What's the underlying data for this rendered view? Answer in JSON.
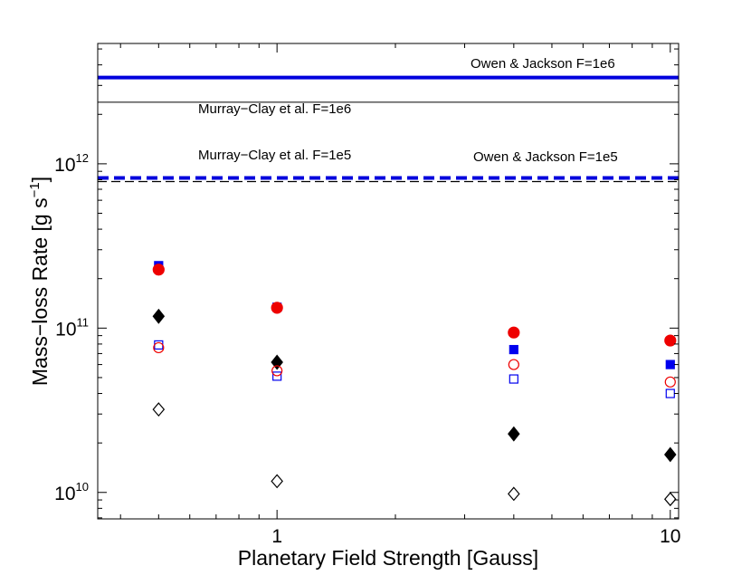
{
  "chart_data": {
    "type": "scatter",
    "title": "",
    "xlabel": "Planetary Field Strength [Gauss]",
    "ylabel": {
      "main": "Mass−loss Rate [g s",
      "sup": "−1",
      "end": "]"
    },
    "xscale": "log",
    "yscale": "log",
    "xlim": [
      0.35,
      10.5
    ],
    "ylim": [
      6900000000.0,
      5400000000000.0
    ],
    "x_ticks": [
      {
        "value": 1,
        "label": "1"
      },
      {
        "value": 10,
        "label": "10"
      }
    ],
    "y_ticks": [
      {
        "value": 10000000000.0,
        "base": "10",
        "exp": "10"
      },
      {
        "value": 100000000000.0,
        "base": "10",
        "exp": "11"
      },
      {
        "value": 1000000000000.0,
        "base": "10",
        "exp": "12"
      }
    ],
    "grid": false,
    "reference_lines": [
      {
        "label": "Owen & Jackson F=1e6",
        "y": 3350000000000.0,
        "color": "#0000dd",
        "style": "solid",
        "width": 4
      },
      {
        "label": "Murray−Clay et al. F=1e6",
        "y": 2370000000000.0,
        "color": "#000000",
        "style": "solid",
        "width": 1
      },
      {
        "label": "Owen & Jackson F=1e5",
        "y": 820000000000.0,
        "color": "#0000dd",
        "style": "dashed",
        "width": 4
      },
      {
        "label": "Murray−Clay et al. F=1e5",
        "y": 780000000000.0,
        "color": "#000000",
        "style": "dashed",
        "width": 1.2
      }
    ],
    "series": [
      {
        "marker": "square",
        "filled": true,
        "color": "#0000ee",
        "x": [
          0.5,
          1,
          4,
          10
        ],
        "y": [
          240000000000.0,
          134000000000.0,
          74000000000.0,
          60000000000.0
        ]
      },
      {
        "marker": "circle",
        "filled": true,
        "color": "#ee0000",
        "x": [
          0.5,
          1,
          4,
          10
        ],
        "y": [
          227000000000.0,
          133000000000.0,
          94000000000.0,
          84000000000.0
        ]
      },
      {
        "marker": "diamond",
        "filled": true,
        "color": "#000000",
        "x": [
          0.5,
          1,
          4,
          10
        ],
        "y": [
          118000000000.0,
          62000000000.0,
          22700000000.0,
          17000000000.0
        ]
      },
      {
        "marker": "square",
        "filled": false,
        "color": "#0000ee",
        "x": [
          0.5,
          1,
          4,
          10
        ],
        "y": [
          79000000000.0,
          51000000000.0,
          49000000000.0,
          40000000000.0
        ]
      },
      {
        "marker": "circle",
        "filled": false,
        "color": "#ee0000",
        "x": [
          0.5,
          1,
          4,
          10
        ],
        "y": [
          76000000000.0,
          55000000000.0,
          60000000000.0,
          47000000000.0
        ]
      },
      {
        "marker": "diamond",
        "filled": false,
        "color": "#000000",
        "x": [
          0.5,
          1,
          4,
          10
        ],
        "y": [
          32000000000.0,
          11700000000.0,
          9800000000.0,
          9100000000.0
        ]
      }
    ]
  }
}
